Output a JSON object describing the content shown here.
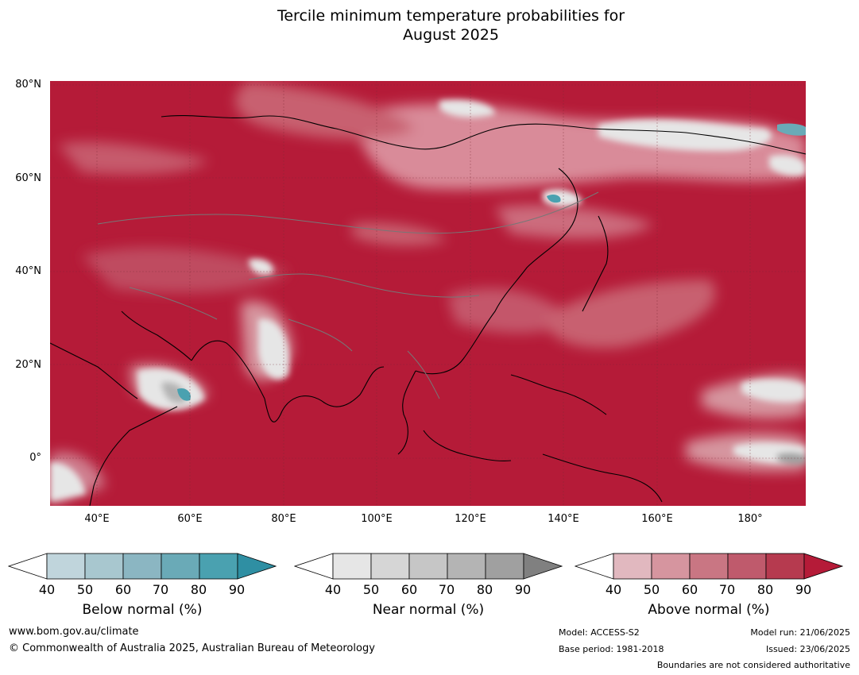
{
  "title": {
    "line1": "Tercile minimum temperature probabilities for",
    "line2": "August 2025"
  },
  "map": {
    "lat_labels": [
      "80°N",
      "60°N",
      "40°N",
      "20°N",
      "0°"
    ],
    "lon_labels": [
      "40°E",
      "60°E",
      "80°E",
      "100°E",
      "120°E",
      "140°E",
      "160°E",
      "180°"
    ],
    "dominant_category": "Above normal",
    "colors": {
      "above_dominant": "#b51b38",
      "ocean_fill": "#b51b38"
    }
  },
  "legends": [
    {
      "title": "Below normal (%)",
      "ticks": [
        "40",
        "50",
        "60",
        "70",
        "80",
        "90"
      ],
      "colors": [
        "#ffffff",
        "#c0d5dc",
        "#a8c7cf",
        "#8bb6c2",
        "#6aaab7",
        "#4aa1b0",
        "#2f8fa3"
      ]
    },
    {
      "title": "Near normal (%)",
      "ticks": [
        "40",
        "50",
        "60",
        "70",
        "80",
        "90"
      ],
      "colors": [
        "#ffffff",
        "#e6e6e6",
        "#d6d6d6",
        "#c6c6c6",
        "#b4b4b4",
        "#a0a0a0",
        "#808080"
      ]
    },
    {
      "title": "Above normal (%)",
      "ticks": [
        "40",
        "50",
        "60",
        "70",
        "80",
        "90"
      ],
      "colors": [
        "#ffffff",
        "#e1b8bf",
        "#d6959f",
        "#c97683",
        "#bf5a6c",
        "#b63a4f",
        "#b51b38"
      ]
    }
  ],
  "footer": {
    "website": "www.bom.gov.au/climate",
    "copyright": "© Commonwealth of Australia 2025, Australian Bureau of Meteorology",
    "model": "Model: ACCESS-S2",
    "base_period": "Base period: 1981-2018",
    "model_run": "Model run: 21/06/2025",
    "issued": "Issued: 23/06/2025",
    "boundaries_note": "Boundaries are not considered authoritative"
  }
}
